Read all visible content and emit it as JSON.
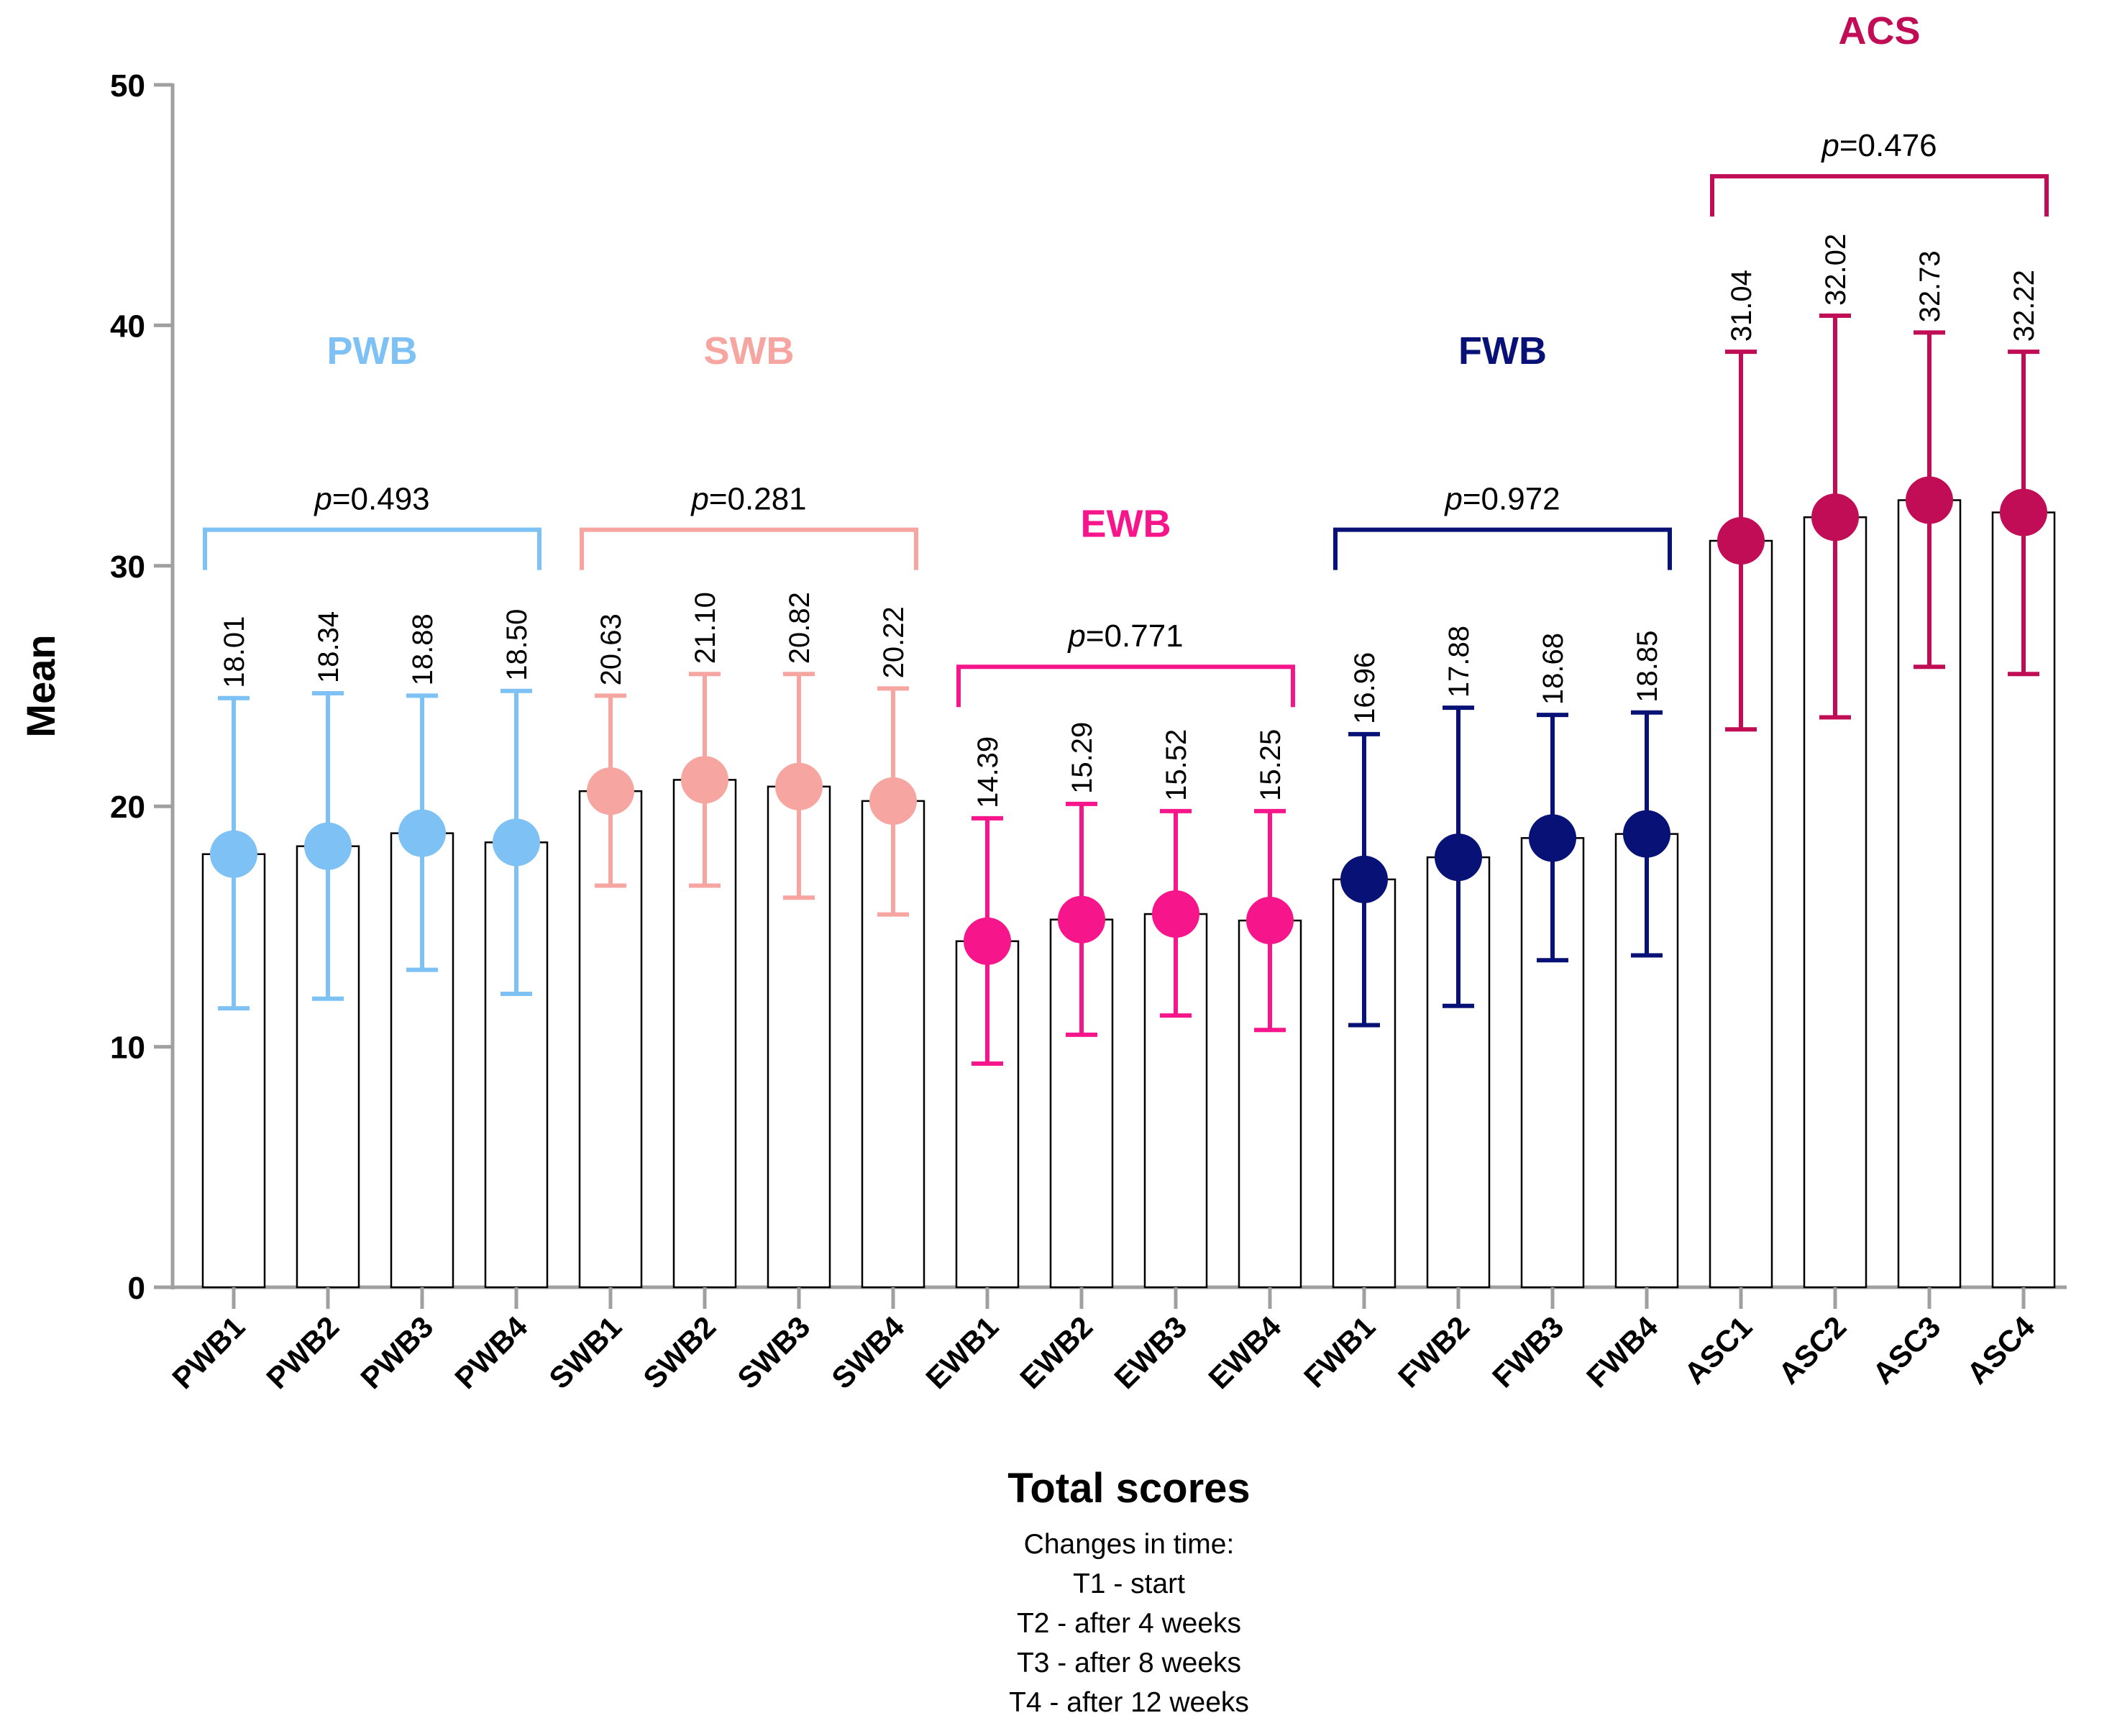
{
  "chart_data": {
    "type": "bar",
    "ylabel": "Mean",
    "xlabel": "Total scores",
    "ylim": [
      0,
      50
    ],
    "yticks": [
      0,
      10,
      20,
      30,
      40,
      50
    ],
    "categories": [
      "PWB1",
      "PWB2",
      "PWB3",
      "PWB4",
      "SWB1",
      "SWB2",
      "SWB3",
      "SWB4",
      "EWB1",
      "EWB2",
      "EWB3",
      "EWB4",
      "FWB1",
      "FWB2",
      "FWB3",
      "FWB4",
      "ASC1",
      "ASC2",
      "ASC3",
      "ASC4"
    ],
    "value_labels": [
      "18.01",
      "18.34",
      "18.88",
      "18.50",
      "20.63",
      "21.10",
      "20.82",
      "20.22",
      "14.39",
      "15.29",
      "15.52",
      "15.25",
      "16.96",
      "17.88",
      "18.68",
      "18.85",
      "31.04",
      "32.02",
      "32.73",
      "32.22"
    ],
    "values": [
      18.01,
      18.34,
      18.88,
      18.5,
      20.63,
      21.1,
      20.82,
      20.22,
      14.39,
      15.29,
      15.52,
      15.25,
      16.96,
      17.88,
      18.68,
      18.85,
      31.04,
      32.02,
      32.73,
      32.22
    ],
    "error_low": [
      11.6,
      12.0,
      13.2,
      12.2,
      16.7,
      16.7,
      16.2,
      15.5,
      9.3,
      10.5,
      11.3,
      10.7,
      10.9,
      11.7,
      13.6,
      13.8,
      23.2,
      23.7,
      25.8,
      25.5
    ],
    "error_high": [
      24.5,
      24.7,
      24.6,
      24.8,
      24.6,
      25.5,
      25.5,
      24.9,
      19.5,
      20.1,
      19.8,
      19.8,
      23.0,
      24.1,
      23.8,
      23.9,
      38.9,
      40.4,
      39.7,
      38.9
    ],
    "groups": [
      {
        "name": "PWB",
        "color": "#7ec1f5",
        "members": [
          0,
          1,
          2,
          3
        ],
        "p_label": "p",
        "p_value": "=0.493",
        "label_value": 39.0,
        "bracket_value": 31.5
      },
      {
        "name": "SWB",
        "color": "#f6a5a1",
        "members": [
          4,
          5,
          6,
          7
        ],
        "p_label": "p",
        "p_value": "=0.281",
        "label_value": 39.0,
        "bracket_value": 31.5
      },
      {
        "name": "EWB",
        "color": "#f7158b",
        "members": [
          8,
          9,
          10,
          11
        ],
        "p_label": "p",
        "p_value": "=0.771",
        "label_value": 31.8,
        "bracket_value": 25.8
      },
      {
        "name": "FWB",
        "color": "#081175",
        "members": [
          12,
          13,
          14,
          15
        ],
        "p_label": "p",
        "p_value": "=0.972",
        "label_value": 39.0,
        "bracket_value": 31.5
      },
      {
        "name": "ACS",
        "color": "#c00d55",
        "members": [
          16,
          17,
          18,
          19
        ],
        "p_label": "p",
        "p_value": "=0.476",
        "label_value": 52.3,
        "bracket_value": 46.2
      }
    ]
  },
  "notes": {
    "heading": "Changes in time:",
    "lines": [
      "T1 - start",
      "T2 - after 4 weeks",
      "T3 - after 8 weeks",
      "T4 - after 12 weeks"
    ]
  }
}
